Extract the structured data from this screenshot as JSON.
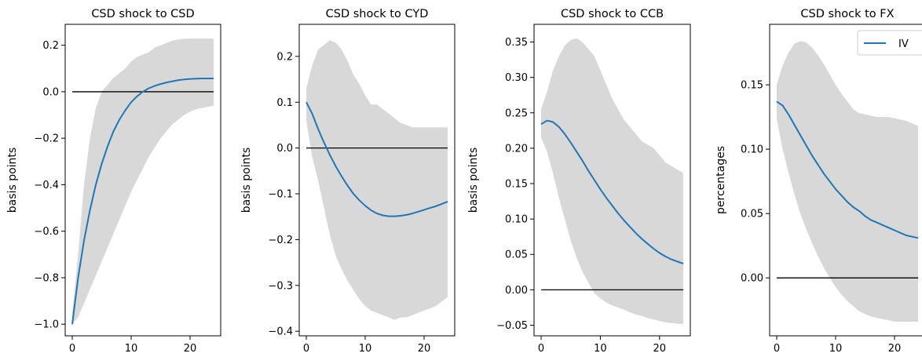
{
  "chart_data": [
    {
      "type": "line",
      "title": "CSD shock to CSD",
      "ylabel": "basis points",
      "xlabel": "",
      "xlim": [
        -1.2,
        25.2
      ],
      "ylim": [
        -1.05,
        0.29
      ],
      "xticks": [
        0,
        10,
        20
      ],
      "yticks": [
        -1.0,
        -0.8,
        -0.6,
        -0.4,
        -0.2,
        0.0,
        0.2
      ],
      "ytick_labels": [
        "−1.0",
        "−0.8",
        "−0.6",
        "−0.4",
        "−0.2",
        "0.0",
        "0.2"
      ],
      "x": [
        0,
        1,
        2,
        3,
        4,
        5,
        6,
        7,
        8,
        9,
        10,
        11,
        12,
        13,
        14,
        15,
        16,
        17,
        18,
        19,
        20,
        21,
        22,
        23,
        24
      ],
      "series": [
        {
          "name": "IV",
          "color": "#1f77b4",
          "values": [
            -1.0,
            -0.8,
            -0.64,
            -0.51,
            -0.4,
            -0.31,
            -0.235,
            -0.17,
            -0.12,
            -0.08,
            -0.045,
            -0.02,
            0.0,
            0.015,
            0.025,
            0.033,
            0.04,
            0.045,
            0.05,
            0.053,
            0.055,
            0.056,
            0.057,
            0.057,
            0.057
          ]
        }
      ],
      "band": {
        "upper": [
          -0.95,
          -0.7,
          -0.4,
          -0.2,
          -0.07,
          0.0,
          0.03,
          0.06,
          0.08,
          0.1,
          0.13,
          0.15,
          0.16,
          0.17,
          0.19,
          0.2,
          0.21,
          0.22,
          0.225,
          0.228,
          0.229,
          0.229,
          0.229,
          0.229,
          0.229
        ],
        "lower": [
          -1.0,
          -0.97,
          -0.91,
          -0.85,
          -0.79,
          -0.73,
          -0.67,
          -0.61,
          -0.55,
          -0.49,
          -0.43,
          -0.38,
          -0.33,
          -0.28,
          -0.24,
          -0.2,
          -0.17,
          -0.14,
          -0.12,
          -0.1,
          -0.085,
          -0.075,
          -0.07,
          -0.065,
          -0.06
        ],
        "color": "#d8d8d8"
      },
      "zero_line": true
    },
    {
      "type": "line",
      "title": "CSD shock to CYD",
      "ylabel": "basis points",
      "xlabel": "",
      "xlim": [
        -1.2,
        25.2
      ],
      "ylim": [
        -0.41,
        0.27
      ],
      "xticks": [
        0,
        10,
        20
      ],
      "yticks": [
        -0.4,
        -0.3,
        -0.2,
        -0.1,
        0.0,
        0.1,
        0.2
      ],
      "ytick_labels": [
        "−0.4",
        "−0.3",
        "−0.2",
        "−0.1",
        "0.0",
        "0.1",
        "0.2"
      ],
      "x": [
        0,
        1,
        2,
        3,
        4,
        5,
        6,
        7,
        8,
        9,
        10,
        11,
        12,
        13,
        14,
        15,
        16,
        17,
        18,
        19,
        20,
        21,
        22,
        23,
        24
      ],
      "series": [
        {
          "name": "IV",
          "color": "#1f77b4",
          "values": [
            0.1,
            0.075,
            0.042,
            0.012,
            -0.015,
            -0.04,
            -0.062,
            -0.082,
            -0.1,
            -0.114,
            -0.126,
            -0.136,
            -0.143,
            -0.147,
            -0.149,
            -0.149,
            -0.148,
            -0.146,
            -0.143,
            -0.139,
            -0.135,
            -0.131,
            -0.127,
            -0.122,
            -0.117
          ]
        }
      ],
      "band": {
        "upper": [
          0.13,
          0.18,
          0.215,
          0.225,
          0.235,
          0.23,
          0.215,
          0.19,
          0.16,
          0.14,
          0.115,
          0.095,
          0.095,
          0.085,
          0.075,
          0.065,
          0.055,
          0.05,
          0.045,
          0.045,
          0.045,
          0.045,
          0.045,
          0.045,
          0.045
        ],
        "lower": [
          0.06,
          -0.02,
          -0.07,
          -0.13,
          -0.19,
          -0.235,
          -0.265,
          -0.29,
          -0.31,
          -0.33,
          -0.345,
          -0.355,
          -0.36,
          -0.365,
          -0.37,
          -0.375,
          -0.37,
          -0.37,
          -0.365,
          -0.36,
          -0.355,
          -0.35,
          -0.345,
          -0.335,
          -0.325
        ],
        "color": "#d8d8d8"
      },
      "zero_line": true
    },
    {
      "type": "line",
      "title": "CSD shock to CCB",
      "ylabel": "basis points",
      "xlabel": "",
      "xlim": [
        -1.2,
        25.2
      ],
      "ylim": [
        -0.065,
        0.375
      ],
      "xticks": [
        0,
        10,
        20
      ],
      "yticks": [
        -0.05,
        0.0,
        0.05,
        0.1,
        0.15,
        0.2,
        0.25,
        0.3,
        0.35
      ],
      "ytick_labels": [
        "−0.05",
        "0.00",
        "0.05",
        "0.10",
        "0.15",
        "0.20",
        "0.25",
        "0.30",
        "0.35"
      ],
      "x": [
        0,
        1,
        2,
        3,
        4,
        5,
        6,
        7,
        8,
        9,
        10,
        11,
        12,
        13,
        14,
        15,
        16,
        17,
        18,
        19,
        20,
        21,
        22,
        23,
        24
      ],
      "series": [
        {
          "name": "IV",
          "color": "#1f77b4",
          "values": [
            0.234,
            0.239,
            0.237,
            0.23,
            0.22,
            0.208,
            0.195,
            0.182,
            0.168,
            0.155,
            0.142,
            0.13,
            0.119,
            0.108,
            0.098,
            0.089,
            0.08,
            0.072,
            0.065,
            0.058,
            0.052,
            0.047,
            0.043,
            0.04,
            0.037
          ]
        }
      ],
      "band": {
        "upper": [
          0.255,
          0.28,
          0.31,
          0.33,
          0.345,
          0.353,
          0.355,
          0.35,
          0.34,
          0.33,
          0.31,
          0.29,
          0.27,
          0.255,
          0.24,
          0.23,
          0.22,
          0.21,
          0.205,
          0.2,
          0.19,
          0.18,
          0.175,
          0.17,
          0.165
        ],
        "lower": [
          0.215,
          0.195,
          0.165,
          0.13,
          0.1,
          0.07,
          0.045,
          0.025,
          0.01,
          -0.005,
          -0.012,
          -0.018,
          -0.022,
          -0.025,
          -0.028,
          -0.032,
          -0.035,
          -0.037,
          -0.04,
          -0.042,
          -0.044,
          -0.046,
          -0.047,
          -0.048,
          -0.048
        ],
        "color": "#d8d8d8"
      },
      "zero_line": true
    },
    {
      "type": "line",
      "title": "CSD shock to FX",
      "ylabel": "percentages",
      "xlabel": "",
      "xlim": [
        -1.2,
        25.2
      ],
      "ylim": [
        -0.045,
        0.197
      ],
      "xticks": [
        0,
        10,
        20
      ],
      "yticks": [
        0.0,
        0.05,
        0.1,
        0.15
      ],
      "ytick_labels": [
        "0.00",
        "0.05",
        "0.10",
        "0.15"
      ],
      "x": [
        0,
        1,
        2,
        3,
        4,
        5,
        6,
        7,
        8,
        9,
        10,
        11,
        12,
        13,
        14,
        15,
        16,
        17,
        18,
        19,
        20,
        21,
        22,
        23,
        24
      ],
      "series": [
        {
          "name": "IV",
          "color": "#1f77b4",
          "values": [
            0.137,
            0.134,
            0.127,
            0.119,
            0.111,
            0.103,
            0.095,
            0.088,
            0.081,
            0.075,
            0.069,
            0.064,
            0.059,
            0.055,
            0.052,
            0.048,
            0.045,
            0.043,
            0.041,
            0.039,
            0.037,
            0.035,
            0.033,
            0.032,
            0.031
          ]
        }
      ],
      "band": {
        "upper": [
          0.15,
          0.165,
          0.175,
          0.182,
          0.184,
          0.183,
          0.179,
          0.173,
          0.166,
          0.158,
          0.15,
          0.143,
          0.137,
          0.131,
          0.128,
          0.127,
          0.126,
          0.125,
          0.125,
          0.125,
          0.124,
          0.123,
          0.122,
          0.12,
          0.118
        ],
        "lower": [
          0.124,
          0.1,
          0.082,
          0.065,
          0.05,
          0.038,
          0.027,
          0.017,
          0.008,
          0.0,
          -0.007,
          -0.013,
          -0.018,
          -0.022,
          -0.026,
          -0.028,
          -0.03,
          -0.031,
          -0.032,
          -0.033,
          -0.034,
          -0.034,
          -0.034,
          -0.034,
          -0.034
        ],
        "color": "#d8d8d8"
      },
      "zero_line": true,
      "legend": {
        "placement": "top-right",
        "entries": [
          "IV"
        ]
      }
    }
  ]
}
